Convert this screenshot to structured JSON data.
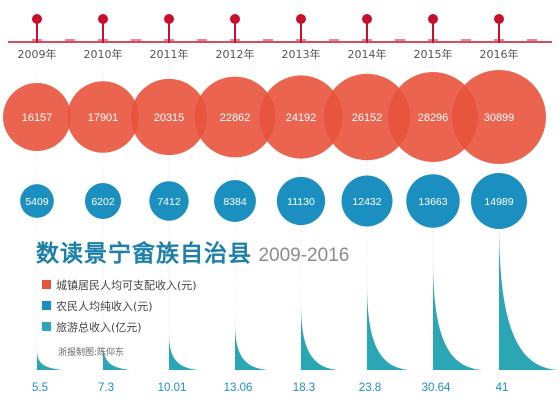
{
  "chart_data": {
    "type": "bubble-timeline",
    "title": "数读景宁畲族自治县",
    "subtitle": "2009-2016",
    "years": [
      "2009年",
      "2010年",
      "2011年",
      "2012年",
      "2013年",
      "2014年",
      "2015年",
      "2016年"
    ],
    "series": [
      {
        "name": "城镇居民人均可支配收入(元)",
        "color": "#e8533c",
        "values": [
          16157,
          17901,
          20315,
          22862,
          24192,
          26152,
          28296,
          30899
        ]
      },
      {
        "name": "农民人均纯收入(元)",
        "color": "#1b8fc0",
        "values": [
          5409,
          6202,
          7412,
          8384,
          11130,
          12432,
          13663,
          14989
        ]
      },
      {
        "name": "旅游总收入(亿元)",
        "color": "#2ba6b5",
        "values": [
          5.5,
          7.3,
          10.01,
          13.06,
          18.3,
          23.8,
          30.64,
          41
        ]
      }
    ],
    "timeline_color": "#c8102e"
  },
  "credit": "浙报制图:陈仰东"
}
